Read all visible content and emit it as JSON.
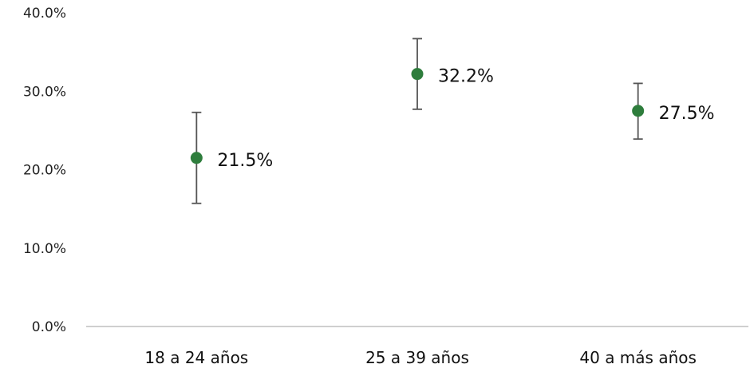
{
  "chart_data": {
    "type": "scatter",
    "categories": [
      "18 a 24 años",
      "25 a 39 años",
      "40 a más años"
    ],
    "values": [
      21.5,
      32.2,
      27.5
    ],
    "error_low": [
      15.7,
      27.7,
      23.9
    ],
    "error_high": [
      27.3,
      36.7,
      31.0
    ],
    "data_labels": [
      "21.5%",
      "32.2%",
      "27.5%"
    ],
    "y_ticks": [
      "0.0%",
      "10.0%",
      "20.0%",
      "30.0%",
      "40.0%"
    ],
    "y_tick_values": [
      0,
      10,
      20,
      30,
      40
    ],
    "ylim": [
      0,
      40
    ],
    "grid": false,
    "marker_color": "#2e7d3c",
    "error_bar_color": "#555555",
    "axis_color": "#bfbfbf"
  }
}
